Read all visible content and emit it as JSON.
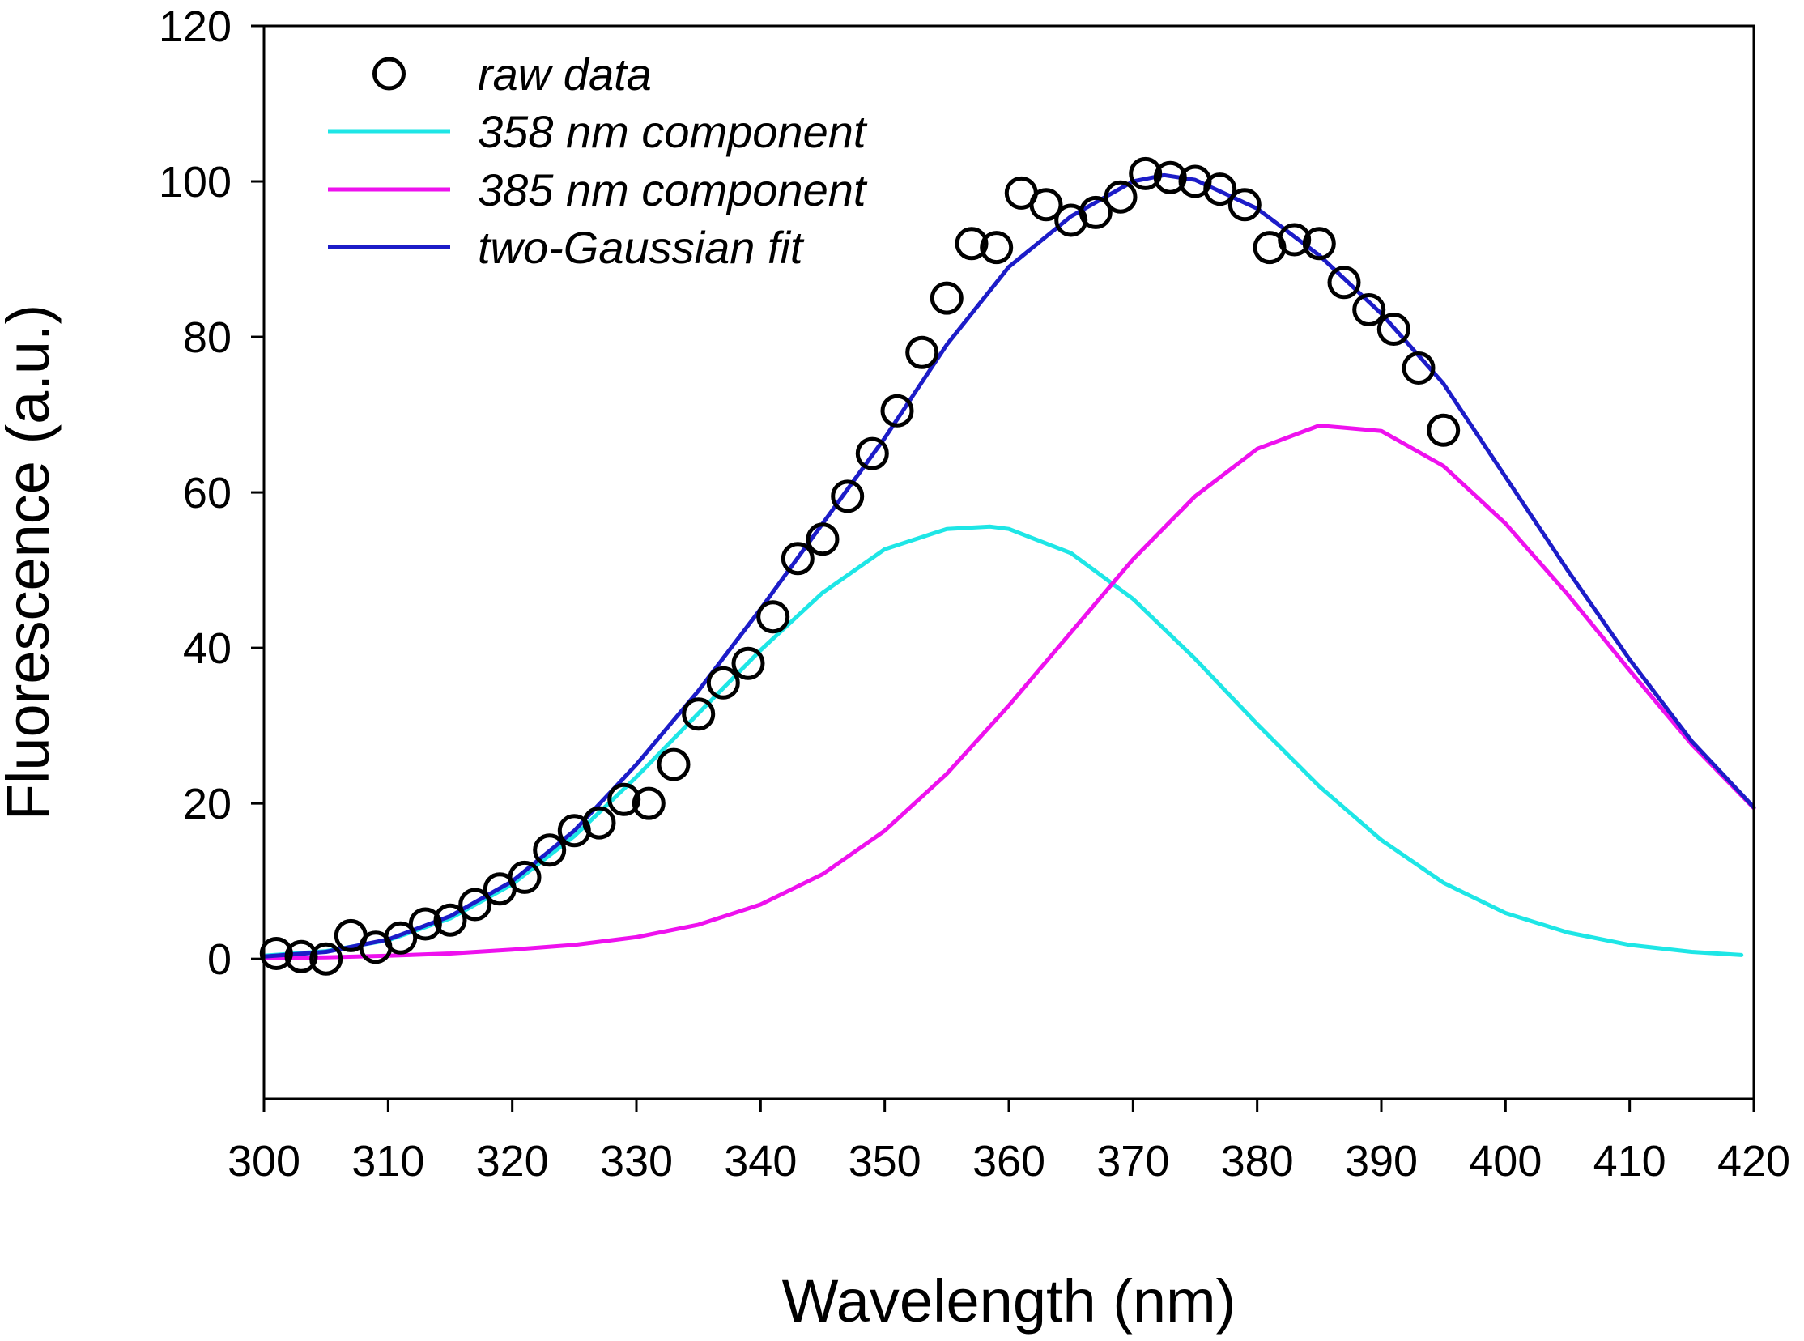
{
  "chart_data": {
    "type": "scatter",
    "title": "",
    "xlabel": "Wavelength (nm)",
    "ylabel": "Fluorescence (a.u.)",
    "xlim": [
      300,
      420
    ],
    "ylim": [
      -18,
      120
    ],
    "xticks": [
      300,
      310,
      320,
      330,
      340,
      350,
      360,
      370,
      380,
      390,
      400,
      410,
      420
    ],
    "yticks": [
      0,
      20,
      40,
      60,
      80,
      100,
      120
    ],
    "grid": false,
    "legend_position": "top-left",
    "legend": [
      {
        "label": "raw data",
        "kind": "marker",
        "color": "#000000"
      },
      {
        "label": "358 nm component",
        "kind": "line",
        "color": "#1ee6e6"
      },
      {
        "label": "385 nm component",
        "kind": "line",
        "color": "#ee11ee"
      },
      {
        "label": "two-Gaussian fit",
        "kind": "line",
        "color": "#1c1cc8"
      }
    ],
    "series": [
      {
        "name": "raw data",
        "kind": "scatter",
        "x": [
          301,
          303,
          305,
          307,
          309,
          311,
          313,
          315,
          317,
          319,
          321,
          323,
          325,
          327,
          329,
          331,
          333,
          335,
          337,
          339,
          341,
          343,
          345,
          347,
          349,
          351,
          353,
          355,
          357,
          359,
          361,
          363,
          365,
          367,
          369,
          371,
          373,
          375,
          377,
          379,
          381,
          383,
          385,
          387,
          389,
          391,
          393,
          395
        ],
        "y": [
          0.7,
          0.3,
          0,
          3,
          1.5,
          2.7,
          4.5,
          5,
          7,
          9,
          10.5,
          14,
          16.5,
          17.5,
          20.5,
          20,
          25,
          31.5,
          35.5,
          38,
          44,
          51.5,
          54,
          59.5,
          65,
          70.5,
          78,
          85,
          92,
          91.5,
          98.5,
          97,
          95,
          96,
          98,
          101,
          100.5,
          100,
          99,
          97,
          91.5,
          92.5,
          92,
          87,
          83.5,
          81,
          76,
          68
        ]
      },
      {
        "name": "358 nm component",
        "kind": "line",
        "x": [
          300,
          305,
          310,
          315,
          320,
          325,
          330,
          335,
          340,
          345,
          350,
          355,
          358.5,
          360,
          365,
          370,
          375,
          380,
          385,
          390,
          395,
          400,
          405,
          410,
          415,
          419
        ],
        "y": [
          0.4,
          1,
          2.4,
          5.2,
          9.6,
          15.8,
          23.4,
          31.6,
          39.7,
          47.1,
          52.7,
          55.3,
          55.6,
          55.3,
          52.2,
          46.3,
          38.6,
          30.2,
          22.2,
          15.3,
          9.8,
          5.9,
          3.4,
          1.8,
          0.9,
          0.5
        ]
      },
      {
        "name": "385 nm component",
        "kind": "line",
        "x": [
          300,
          305,
          310,
          315,
          320,
          325,
          330,
          335,
          340,
          345,
          350,
          355,
          360,
          365,
          370,
          375,
          380,
          385,
          390,
          395,
          400,
          405,
          410,
          415,
          420
        ],
        "y": [
          0.1,
          0.2,
          0.4,
          0.7,
          1.2,
          1.8,
          2.8,
          4.4,
          7,
          10.9,
          16.5,
          23.8,
          32.6,
          42,
          51.4,
          59.5,
          65.6,
          68.6,
          67.9,
          63.4,
          56,
          46.9,
          37.1,
          27.6,
          19.4
        ]
      },
      {
        "name": "two-Gaussian fit",
        "kind": "line",
        "x": [
          300,
          305,
          310,
          315,
          320,
          325,
          330,
          335,
          340,
          345,
          350,
          355,
          360,
          365,
          370,
          372.5,
          375,
          380,
          385,
          390,
          395,
          400,
          405,
          410,
          415,
          420
        ],
        "y": [
          0.3,
          0.9,
          2.5,
          5.5,
          10,
          16.5,
          25,
          34.5,
          45,
          56,
          67,
          79,
          89,
          95.5,
          100,
          100.8,
          100.2,
          96.5,
          90.5,
          83,
          74,
          62,
          50,
          38.5,
          28,
          19.5
        ]
      }
    ]
  }
}
